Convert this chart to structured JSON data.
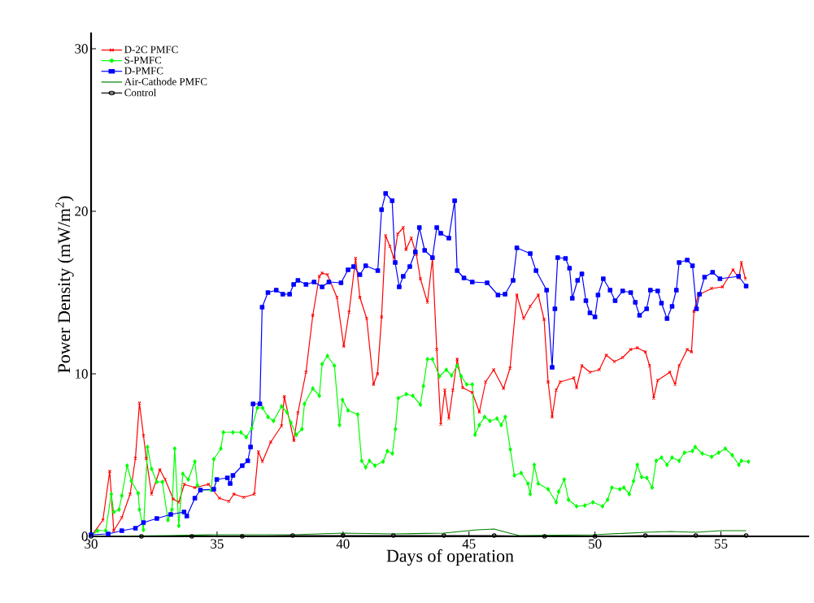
{
  "chart_data": {
    "type": "line",
    "xlabel": "Days of operation",
    "ylabel": "Power Density (mW/m$^{2}$)",
    "xlim": [
      30,
      58.5
    ],
    "ylim": [
      0,
      31
    ],
    "xticks": [
      30,
      35,
      40,
      45,
      50,
      55
    ],
    "yticks": [
      0,
      10,
      20,
      30
    ],
    "grid": false,
    "legend": "top left",
    "line_style": "solid",
    "series": [
      {
        "name": "D-2C PMFC",
        "color": "#ff0000",
        "marker": "cross",
        "x": [
          30,
          30.47,
          30.74,
          30.9,
          31.22,
          31.55,
          31.76,
          31.92,
          32.08,
          32.19,
          32.4,
          32.73,
          32.94,
          33.26,
          33.48,
          33.7,
          34.12,
          34.66,
          35.09,
          35.47,
          35.67,
          36.06,
          36.48,
          36.64,
          36.8,
          37.13,
          37.56,
          37.67,
          38.05,
          38.21,
          38.53,
          38.8,
          39.06,
          39.17,
          39.38,
          39.76,
          40.03,
          40.24,
          40.5,
          40.67,
          40.94,
          41.21,
          41.37,
          41.53,
          41.69,
          41.86,
          42.02,
          42.17,
          42.39,
          42.5,
          42.71,
          42.91,
          43.07,
          43.35,
          43.55,
          43.72,
          43.88,
          44.04,
          44.2,
          44.36,
          44.53,
          44.75,
          45.13,
          45.41,
          45.66,
          45.98,
          46.37,
          46.63,
          46.9,
          47.17,
          47.43,
          47.75,
          47.98,
          48.14,
          48.3,
          48.46,
          48.62,
          49.16,
          49.27,
          49.48,
          49.8,
          50.17,
          50.45,
          50.77,
          51.1,
          51.42,
          51.68,
          52.0,
          52.17,
          52.33,
          52.49,
          52.97,
          53.18,
          53.34,
          53.66,
          53.83,
          53.93,
          54.1,
          54.63,
          55.06,
          55.48,
          55.71,
          55.81,
          55.97
        ],
        "values": [
          0,
          1.0,
          4.0,
          0.35,
          1.15,
          2.6,
          4.8,
          8.2,
          6.2,
          4.8,
          2.6,
          4.1,
          3.5,
          2.3,
          2.1,
          3.2,
          3.0,
          3.2,
          2.35,
          2.15,
          2.6,
          2.4,
          2.6,
          5.2,
          4.6,
          5.8,
          6.8,
          8.6,
          5.9,
          7.6,
          10.1,
          13.6,
          16.0,
          16.2,
          16.1,
          14.7,
          11.7,
          13.8,
          17.1,
          14.7,
          13.4,
          9.35,
          10.0,
          13.5,
          18.5,
          17.85,
          17.1,
          18.6,
          19.0,
          17.65,
          18.35,
          17.35,
          15.85,
          14.4,
          17.1,
          11.5,
          6.9,
          9.0,
          7.25,
          9.0,
          10.9,
          9.15,
          8.85,
          7.65,
          9.5,
          10.25,
          9.1,
          10.35,
          14.85,
          13.4,
          14.15,
          14.85,
          13.35,
          9.5,
          7.35,
          9.0,
          9.5,
          9.75,
          9.15,
          10.5,
          10.1,
          10.25,
          11.15,
          10.75,
          11.0,
          11.5,
          11.6,
          11.35,
          10.5,
          8.5,
          9.6,
          10.1,
          9.35,
          10.5,
          11.5,
          11.35,
          13.85,
          14.85,
          15.25,
          15.35,
          16.4,
          15.9,
          16.85,
          15.85
        ]
      },
      {
        "name": "S-PMFC",
        "color": "#00ff00",
        "marker": "diamond",
        "x": [
          30,
          30.26,
          30.58,
          30.8,
          30.9,
          31.11,
          31.22,
          31.43,
          31.6,
          31.87,
          31.92,
          32.08,
          32.24,
          32.4,
          32.61,
          32.83,
          33.05,
          33.21,
          33.32,
          33.48,
          33.64,
          33.86,
          34.12,
          34.22,
          34.34,
          34.77,
          34.87,
          35.15,
          35.25,
          35.63,
          35.95,
          36.16,
          36.38,
          36.6,
          36.81,
          37.02,
          37.24,
          37.56,
          37.77,
          37.93,
          38.15,
          38.37,
          38.47,
          38.8,
          39.06,
          39.17,
          39.38,
          39.66,
          39.86,
          39.98,
          40.2,
          40.58,
          40.74,
          40.9,
          41.05,
          41.27,
          41.59,
          41.76,
          41.96,
          42.08,
          42.19,
          42.51,
          42.77,
          43.07,
          43.19,
          43.35,
          43.55,
          43.83,
          44.1,
          44.31,
          44.53,
          44.69,
          44.91,
          45.13,
          45.24,
          45.41,
          45.62,
          45.83,
          46.11,
          46.28,
          46.44,
          46.64,
          46.8,
          47.07,
          47.34,
          47.43,
          47.59,
          47.75,
          48.14,
          48.46,
          48.56,
          48.78,
          48.95,
          49.27,
          49.6,
          49.92,
          50.3,
          50.5,
          50.67,
          50.99,
          51.15,
          51.36,
          51.53,
          51.68,
          51.85,
          52.06,
          52.27,
          52.43,
          52.64,
          52.86,
          53.06,
          53.34,
          53.55,
          53.87,
          53.98,
          54.26,
          54.63,
          54.91,
          55.17,
          55.45,
          55.71,
          55.81,
          56.09
        ],
        "values": [
          0.05,
          0.35,
          0.35,
          2.6,
          1.5,
          1.65,
          2.5,
          4.35,
          3.4,
          2.65,
          1.65,
          0.4,
          5.5,
          4.15,
          3.35,
          3.35,
          1.0,
          1.65,
          5.4,
          0.65,
          3.85,
          3.5,
          4.6,
          3.15,
          2.85,
          2.85,
          4.75,
          5.4,
          6.4,
          6.4,
          6.4,
          6.1,
          6.65,
          7.9,
          7.9,
          7.35,
          7.1,
          8.0,
          7.65,
          7.0,
          6.25,
          6.6,
          8.15,
          9.1,
          8.65,
          10.6,
          11.1,
          10.5,
          6.85,
          8.4,
          7.75,
          7.5,
          4.65,
          4.25,
          4.65,
          4.35,
          4.6,
          5.25,
          5.1,
          6.6,
          8.5,
          8.75,
          8.65,
          8.1,
          9.25,
          10.9,
          10.9,
          9.85,
          10.25,
          9.9,
          10.5,
          9.85,
          9.35,
          9.35,
          6.25,
          6.85,
          7.35,
          7.1,
          7.25,
          6.85,
          7.35,
          5.35,
          3.75,
          3.9,
          3.25,
          2.6,
          4.4,
          3.25,
          2.9,
          2.1,
          2.75,
          3.5,
          2.25,
          1.85,
          1.9,
          2.1,
          1.85,
          2.25,
          3.0,
          2.9,
          3.0,
          2.6,
          3.4,
          4.4,
          3.65,
          3.6,
          3.0,
          4.65,
          4.85,
          4.4,
          4.85,
          4.65,
          5.15,
          5.25,
          5.5,
          5.1,
          4.9,
          5.15,
          5.4,
          5.0,
          4.4,
          4.65,
          4.6
        ]
      },
      {
        "name": "D-PMFC",
        "color": "#0000ff",
        "marker": "square",
        "x": [
          30,
          30.68,
          31.22,
          31.76,
          32.08,
          32.61,
          33.16,
          33.69,
          33.8,
          34.12,
          34.34,
          34.87,
          34.99,
          35.41,
          35.52,
          35.63,
          36.0,
          36.22,
          36.33,
          36.43,
          36.7,
          36.79,
          37.02,
          37.35,
          37.61,
          37.88,
          38.04,
          38.21,
          38.53,
          38.85,
          39.17,
          39.44,
          39.92,
          40.2,
          40.42,
          40.67,
          40.9,
          41.38,
          41.53,
          41.69,
          41.95,
          42.07,
          42.23,
          42.39,
          42.65,
          42.87,
          43.03,
          43.24,
          43.55,
          43.72,
          43.88,
          44.2,
          44.43,
          44.53,
          44.8,
          45.13,
          45.72,
          46.15,
          46.43,
          46.75,
          46.9,
          47.43,
          47.66,
          48.08,
          48.3,
          48.41,
          48.52,
          48.83,
          48.99,
          49.1,
          49.31,
          49.48,
          49.64,
          49.8,
          50.0,
          50.12,
          50.33,
          50.6,
          50.8,
          51.1,
          51.42,
          51.6,
          51.77,
          52.05,
          52.2,
          52.49,
          52.64,
          52.86,
          53.06,
          53.23,
          53.34,
          53.66,
          53.87,
          54.03,
          54.15,
          54.35,
          54.67,
          54.96,
          55.7,
          56.0
        ],
        "values": [
          0.1,
          0.15,
          0.35,
          0.5,
          0.85,
          1.1,
          1.35,
          1.5,
          1.25,
          2.35,
          2.85,
          2.9,
          3.5,
          3.6,
          3.25,
          3.75,
          4.35,
          4.65,
          5.5,
          8.15,
          8.15,
          14.1,
          15.0,
          15.15,
          14.9,
          14.9,
          15.5,
          15.75,
          15.5,
          15.65,
          15.35,
          15.65,
          15.6,
          16.4,
          16.6,
          16.1,
          16.65,
          16.35,
          20.1,
          21.1,
          20.65,
          16.85,
          15.35,
          16.0,
          16.6,
          17.5,
          19.0,
          17.6,
          17.15,
          19.0,
          18.65,
          18.35,
          20.65,
          16.35,
          15.9,
          15.65,
          15.6,
          14.85,
          14.9,
          15.75,
          17.75,
          17.4,
          16.35,
          15.15,
          10.4,
          14.0,
          17.15,
          17.1,
          16.5,
          14.65,
          15.75,
          16.15,
          14.5,
          13.75,
          13.5,
          14.85,
          15.85,
          15.15,
          14.5,
          15.1,
          15.0,
          14.4,
          13.6,
          14.0,
          15.15,
          15.1,
          14.35,
          13.4,
          14.15,
          15.15,
          16.85,
          17.0,
          16.65,
          14.0,
          14.9,
          15.95,
          16.25,
          15.85,
          16.0,
          15.4
        ]
      },
      {
        "name": "Air-Cathode PMFC",
        "color": "#008000",
        "marker": "none",
        "x": [
          30,
          33,
          35,
          38,
          40,
          42,
          44,
          45.3,
          46,
          46.6,
          47,
          50,
          52,
          53,
          54,
          55,
          56
        ],
        "values": [
          0,
          0.05,
          0.1,
          0.1,
          0.2,
          0.15,
          0.2,
          0.4,
          0.45,
          0.2,
          0.05,
          0.1,
          0.25,
          0.3,
          0.25,
          0.35,
          0.35
        ]
      },
      {
        "name": "Control",
        "color": "#000000",
        "marker": "circle",
        "x": [
          30,
          32,
          34,
          36,
          38,
          40,
          42,
          44,
          46,
          48,
          50,
          52,
          54,
          56
        ],
        "values": [
          0,
          0,
          0,
          0,
          0.05,
          0.05,
          0.05,
          0.05,
          0.05,
          0,
          0,
          0.05,
          0.05,
          0.05
        ]
      }
    ]
  }
}
